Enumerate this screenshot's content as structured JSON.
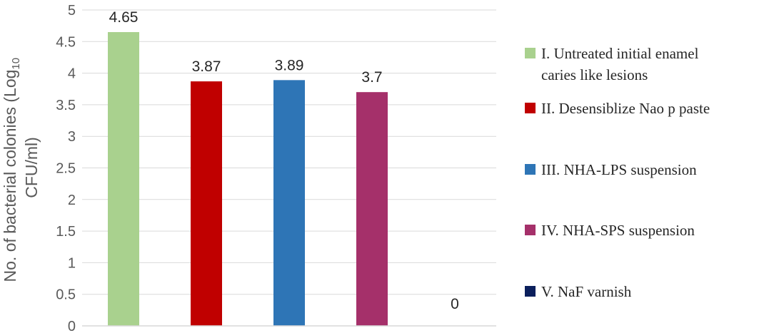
{
  "chart_data": {
    "type": "bar",
    "title": "",
    "ylabel_line1": "No. of bacterial colonies (Log",
    "ylabel_sub": "10",
    "ylabel_line2": "CFU/ml)",
    "ylim": [
      0,
      5
    ],
    "yticks": [
      "0",
      "0.5",
      "1",
      "1.5",
      "2",
      "2.5",
      "3",
      "3.5",
      "4",
      "4.5",
      "5"
    ],
    "grid": true,
    "legend_position": "right",
    "series": [
      {
        "name_lines": [
          "I. Untreated initial enamel",
          "caries like lesions"
        ],
        "value": 4.65,
        "label": "4.65",
        "color": "#a9d18e"
      },
      {
        "name_lines": [
          "II. Desensiblize Nao p paste"
        ],
        "value": 3.87,
        "label": "3.87",
        "color": "#c00000"
      },
      {
        "name_lines": [
          "III. NHA-LPS suspension"
        ],
        "value": 3.89,
        "label": "3.89",
        "color": "#2e75b6"
      },
      {
        "name_lines": [
          "IV. NHA-SPS suspension"
        ],
        "value": 3.7,
        "label": "3.7",
        "color": "#a5306a"
      },
      {
        "name_lines": [
          "V. NaF varnish"
        ],
        "value": 0,
        "label": "0",
        "color": "#0b1f5c"
      }
    ]
  }
}
